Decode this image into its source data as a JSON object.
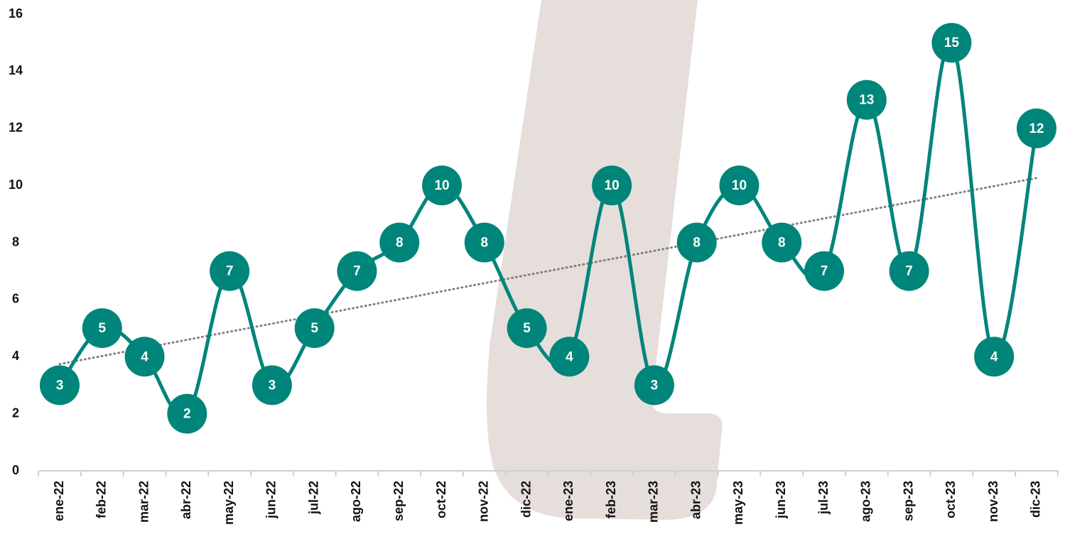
{
  "chart_data": {
    "type": "line",
    "categories": [
      "ene-22",
      "feb-22",
      "mar-22",
      "abr-22",
      "may-22",
      "jun-22",
      "jul-22",
      "ago-22",
      "sep-22",
      "oct-22",
      "nov-22",
      "dic-22",
      "ene-23",
      "feb-23",
      "mar-23",
      "abr-23",
      "may-23",
      "jun-23",
      "jul-23",
      "ago-23",
      "sep-23",
      "oct-23",
      "nov-23",
      "dic-23"
    ],
    "values": [
      3,
      5,
      4,
      2,
      7,
      3,
      5,
      7,
      8,
      10,
      8,
      5,
      4,
      10,
      3,
      8,
      10,
      8,
      7,
      13,
      7,
      15,
      4,
      12
    ],
    "color": "#00857a",
    "trendline": true,
    "trendline_color": "#7f7f7f",
    "smooth": true,
    "ylim": [
      0,
      16
    ],
    "yticks": [
      0,
      2,
      4,
      6,
      8,
      10,
      12,
      14,
      16
    ],
    "grid": false
  }
}
